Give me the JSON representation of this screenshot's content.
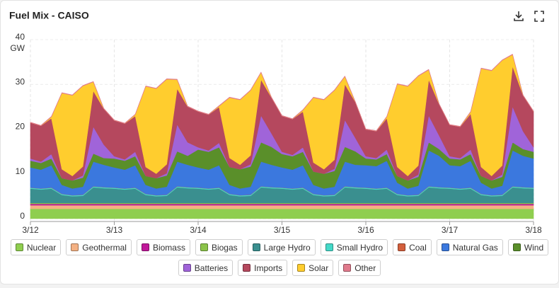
{
  "chart_data": {
    "type": "stacked-area",
    "title": "Fuel Mix - CAISO",
    "ylabel": "GW",
    "x": [
      0,
      3,
      6,
      9,
      12,
      15,
      18,
      21,
      24,
      27,
      30,
      33,
      36,
      39,
      42,
      45,
      48,
      51,
      54,
      57,
      60,
      63,
      66,
      69,
      72,
      75,
      78,
      81,
      84,
      87,
      90,
      93,
      96,
      99,
      102,
      105,
      108,
      111,
      114,
      117,
      120,
      123,
      126,
      129,
      132,
      135,
      138,
      141,
      144
    ],
    "xlim": [
      0,
      144
    ],
    "xticks": [
      {
        "value": 0,
        "label": "3/12"
      },
      {
        "value": 24,
        "label": "3/13"
      },
      {
        "value": 48,
        "label": "3/14"
      },
      {
        "value": 72,
        "label": "3/15"
      },
      {
        "value": 96,
        "label": "3/16"
      },
      {
        "value": 120,
        "label": "3/17"
      },
      {
        "value": 144,
        "label": "3/18"
      }
    ],
    "ylim": [
      0,
      40
    ],
    "yticks": [
      0,
      10,
      20,
      30,
      40
    ],
    "grid": true,
    "series": [
      {
        "name": "Nuclear",
        "color": "#8fce4f",
        "values": [
          2.2,
          2.2,
          2.2,
          2.2,
          2.2,
          2.2,
          2.2,
          2.2,
          2.2,
          2.2,
          2.2,
          2.2,
          2.2,
          2.2,
          2.2,
          2.2,
          2.2,
          2.2,
          2.2,
          2.2,
          2.2,
          2.2,
          2.2,
          2.2,
          2.2,
          2.2,
          2.2,
          2.2,
          2.2,
          2.2,
          2.2,
          2.2,
          2.2,
          2.2,
          2.2,
          2.2,
          2.2,
          2.2,
          2.2,
          2.2,
          2.2,
          2.2,
          2.2,
          2.2,
          2.2,
          2.2,
          2.2,
          2.2,
          2.2
        ]
      },
      {
        "name": "Geothermal",
        "color": "#f4b183",
        "values": [
          0.8,
          0.8,
          0.8,
          0.8,
          0.8,
          0.8,
          0.8,
          0.8,
          0.8,
          0.8,
          0.8,
          0.8,
          0.8,
          0.8,
          0.8,
          0.8,
          0.8,
          0.8,
          0.8,
          0.8,
          0.8,
          0.8,
          0.8,
          0.8,
          0.8,
          0.8,
          0.8,
          0.8,
          0.8,
          0.8,
          0.8,
          0.8,
          0.8,
          0.8,
          0.8,
          0.8,
          0.8,
          0.8,
          0.8,
          0.8,
          0.8,
          0.8,
          0.8,
          0.8,
          0.8,
          0.8,
          0.8,
          0.8,
          0.8
        ]
      },
      {
        "name": "Biomass",
        "color": "#c0189a",
        "values": [
          0.3,
          0.3,
          0.3,
          0.3,
          0.3,
          0.3,
          0.3,
          0.3,
          0.3,
          0.3,
          0.3,
          0.3,
          0.3,
          0.3,
          0.3,
          0.3,
          0.3,
          0.3,
          0.3,
          0.3,
          0.3,
          0.3,
          0.3,
          0.3,
          0.3,
          0.3,
          0.3,
          0.3,
          0.3,
          0.3,
          0.3,
          0.3,
          0.3,
          0.3,
          0.3,
          0.3,
          0.3,
          0.3,
          0.3,
          0.3,
          0.3,
          0.3,
          0.3,
          0.3,
          0.3,
          0.3,
          0.3,
          0.3,
          0.3
        ]
      },
      {
        "name": "Biogas",
        "color": "#8bc34a",
        "values": [
          0.2,
          0.2,
          0.2,
          0.2,
          0.2,
          0.2,
          0.2,
          0.2,
          0.2,
          0.2,
          0.2,
          0.2,
          0.2,
          0.2,
          0.2,
          0.2,
          0.2,
          0.2,
          0.2,
          0.2,
          0.2,
          0.2,
          0.2,
          0.2,
          0.2,
          0.2,
          0.2,
          0.2,
          0.2,
          0.2,
          0.2,
          0.2,
          0.2,
          0.2,
          0.2,
          0.2,
          0.2,
          0.2,
          0.2,
          0.2,
          0.2,
          0.2,
          0.2,
          0.2,
          0.2,
          0.2,
          0.2,
          0.2,
          0.2
        ]
      },
      {
        "name": "Large Hydro",
        "color": "#3a8f8f",
        "values": [
          3.2,
          3,
          3.2,
          1.8,
          1.5,
          1.6,
          3.5,
          3.3,
          3.2,
          3,
          3.2,
          1.8,
          1.5,
          1.6,
          3.5,
          3.3,
          3.2,
          3,
          3.2,
          1.8,
          1.5,
          1.6,
          3.5,
          3.3,
          3.2,
          3,
          3.2,
          1.8,
          1.5,
          1.6,
          3.5,
          3.3,
          3.2,
          3,
          3.2,
          1.8,
          1.5,
          1.6,
          3.5,
          3.3,
          3.2,
          3,
          3.2,
          1.8,
          1.5,
          1.6,
          3.5,
          3.3,
          3.2
        ]
      },
      {
        "name": "Small Hydro",
        "color": "#44d9c8",
        "values": [
          0.2,
          0.2,
          0.2,
          0.2,
          0.2,
          0.2,
          0.2,
          0.2,
          0.2,
          0.2,
          0.2,
          0.2,
          0.2,
          0.2,
          0.2,
          0.2,
          0.2,
          0.2,
          0.2,
          0.2,
          0.2,
          0.2,
          0.2,
          0.2,
          0.2,
          0.2,
          0.2,
          0.2,
          0.2,
          0.2,
          0.2,
          0.2,
          0.2,
          0.2,
          0.2,
          0.2,
          0.2,
          0.2,
          0.2,
          0.2,
          0.2,
          0.2,
          0.2,
          0.2,
          0.2,
          0.2,
          0.2,
          0.2,
          0.2
        ]
      },
      {
        "name": "Coal",
        "color": "#d35f3c",
        "values": [
          0.05,
          0.05,
          0.05,
          0.05,
          0.05,
          0.05,
          0.05,
          0.05,
          0.05,
          0.05,
          0.05,
          0.05,
          0.05,
          0.05,
          0.05,
          0.05,
          0.05,
          0.05,
          0.05,
          0.05,
          0.05,
          0.05,
          0.05,
          0.05,
          0.05,
          0.05,
          0.05,
          0.05,
          0.05,
          0.05,
          0.05,
          0.05,
          0.05,
          0.05,
          0.05,
          0.05,
          0.05,
          0.05,
          0.05,
          0.05,
          0.05,
          0.05,
          0.05,
          0.05,
          0.05,
          0.05,
          0.05,
          0.05,
          0.05
        ]
      },
      {
        "name": "Natural Gas",
        "color": "#3b78de",
        "values": [
          4.5,
          4.2,
          5,
          2,
          1.5,
          1.8,
          5.5,
          5,
          4.5,
          4.2,
          5,
          2,
          1.5,
          1.8,
          5.5,
          5,
          4.5,
          4.2,
          5,
          2,
          1.5,
          1.8,
          5.5,
          5,
          4.5,
          4.2,
          5,
          2,
          1.5,
          1.8,
          5.5,
          5,
          5,
          5,
          6,
          2.5,
          1.5,
          2,
          8,
          7,
          5,
          5,
          6,
          2.5,
          1.5,
          2,
          8,
          7,
          6.5
        ]
      },
      {
        "name": "Wind",
        "color": "#5a8f2a",
        "values": [
          1.5,
          1.5,
          1.5,
          1.5,
          1.8,
          2,
          1.8,
          1.5,
          2,
          2,
          2,
          2,
          2.3,
          2.5,
          2.3,
          2,
          4,
          4,
          4,
          4,
          4.3,
          4.5,
          4.3,
          4,
          3,
          3,
          3,
          3,
          3.3,
          3.5,
          3.3,
          3,
          1.5,
          1.5,
          1.5,
          1.5,
          1.8,
          2,
          1.8,
          1.5,
          1.5,
          1.5,
          1.5,
          1.5,
          1.8,
          2,
          1.8,
          1.5,
          1.5
        ]
      },
      {
        "name": "Batteries",
        "color": "#a064d9",
        "values": [
          0.5,
          0.3,
          1,
          0,
          0,
          0.5,
          6,
          3,
          0.5,
          0.3,
          1,
          0,
          0,
          0.5,
          6,
          3,
          0.5,
          0.3,
          1,
          0,
          0,
          0.5,
          6,
          3,
          0.5,
          0.3,
          1,
          0,
          0,
          0.5,
          6,
          3,
          0.5,
          0.3,
          1,
          0,
          0,
          0.5,
          6,
          3,
          0.5,
          0.3,
          1,
          0,
          0,
          0.5,
          8,
          4,
          1
        ]
      },
      {
        "name": "Imports",
        "color": "#b5485e",
        "values": [
          8,
          8,
          8,
          2,
          1,
          2,
          8,
          8,
          8,
          8,
          8,
          2,
          1,
          2,
          8,
          8,
          8,
          8,
          8,
          2,
          1,
          2,
          8,
          8,
          8,
          8,
          8,
          2,
          1,
          2,
          8,
          8,
          6,
          6,
          7,
          2,
          1,
          2,
          8,
          7,
          7,
          7,
          8,
          2,
          1,
          2,
          9,
          8,
          8
        ]
      },
      {
        "name": "Solar",
        "color": "#ffcd2e",
        "values": [
          0,
          0,
          0.3,
          17,
          18,
          18,
          2,
          0,
          0,
          0,
          0.3,
          18,
          19,
          19,
          2,
          0,
          0,
          0,
          0.2,
          13.5,
          14.5,
          14.5,
          1.6,
          0,
          0,
          0,
          0.3,
          14.5,
          15.5,
          15.5,
          1.7,
          0,
          0,
          0,
          0.3,
          18.5,
          20,
          20,
          2.2,
          0,
          0,
          0,
          0.4,
          22,
          23.5,
          23.5,
          2.6,
          0,
          0
        ]
      },
      {
        "name": "Other",
        "color": "#e07a8c",
        "values": [
          0.1,
          0.1,
          0.1,
          0.1,
          0.1,
          0.1,
          0.1,
          0.1,
          0.1,
          0.1,
          0.1,
          0.1,
          0.1,
          0.1,
          0.1,
          0.1,
          0.1,
          0.1,
          0.1,
          0.1,
          0.1,
          0.1,
          0.1,
          0.1,
          0.1,
          0.1,
          0.1,
          0.1,
          0.1,
          0.1,
          0.1,
          0.1,
          0.1,
          0.1,
          0.1,
          0.1,
          0.1,
          0.1,
          0.1,
          0.1,
          0.1,
          0.1,
          0.1,
          0.1,
          0.1,
          0.1,
          0.1,
          0.1,
          0.1
        ]
      }
    ]
  }
}
